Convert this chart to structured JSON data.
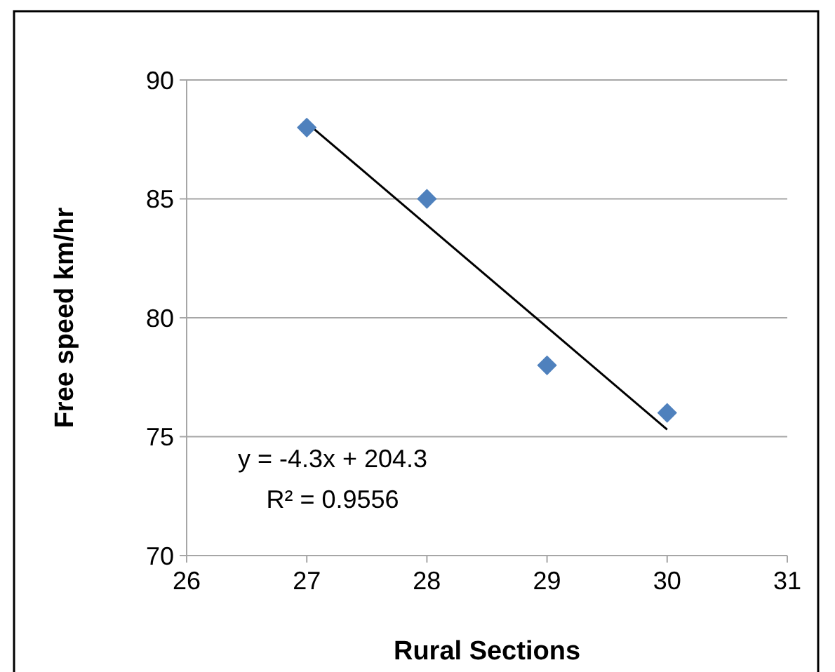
{
  "chart_data": {
    "type": "scatter",
    "xlabel": "Rural Sections",
    "ylabel": "Free speed km/hr",
    "series": [
      {
        "type": "scatter",
        "color": "#4f81bd",
        "x": [
          27,
          28,
          29,
          30
        ],
        "values": [
          88,
          85,
          78,
          76
        ],
        "marker": "diamond"
      },
      {
        "type": "line",
        "color": "#000000",
        "x": [
          27,
          30
        ],
        "values": [
          88.2,
          75.3
        ],
        "marker": "none",
        "line_style": "solid"
      }
    ],
    "xlim": [
      26,
      31
    ],
    "xticks": [
      26,
      27,
      28,
      29,
      30,
      31
    ],
    "ylim": [
      70,
      90
    ],
    "yticks": [
      70,
      75,
      80,
      85,
      90
    ],
    "grid": "y",
    "annotations": [
      "y = -4.3x + 204.3",
      "R² = 0.9556"
    ]
  }
}
